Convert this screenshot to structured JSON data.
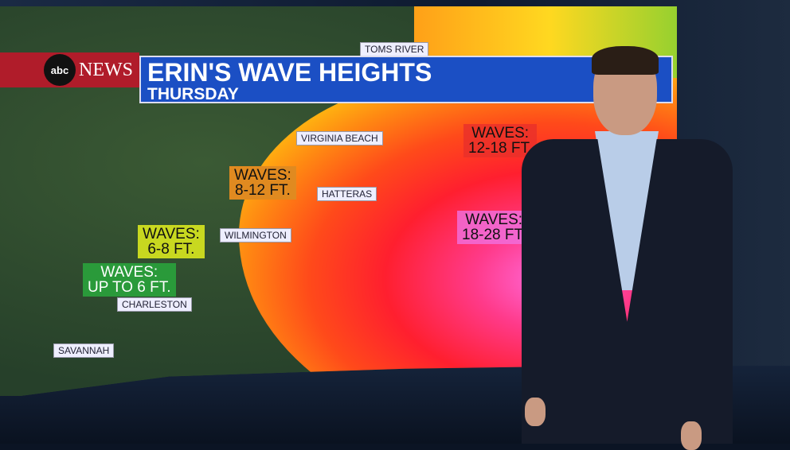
{
  "broadcast": {
    "network": "NEWS",
    "logo_text": "abc",
    "title": "ERIN'S WAVE HEIGHTS",
    "subtitle": "THURSDAY"
  },
  "cities": [
    "TOMS RIVER",
    "VIRGINIA BEACH",
    "HATTERAS",
    "WILMINGTON",
    "CHARLESTON",
    "SAVANNAH"
  ],
  "wave_labels": [
    {
      "text": "WAVES:\n12-18 FT.",
      "color": "#e8302a"
    },
    {
      "text": "WAVES:\n18-28 FT.",
      "color": "#f070e0"
    },
    {
      "text": "WAVES:\n8-12 FT.",
      "color": "#e08a20"
    },
    {
      "text": "WAVES:\n6-8 FT.",
      "color": "#c8d820"
    },
    {
      "text": "WAVES:\nUP TO 6 FT.",
      "color": "#2a9a3a"
    }
  ]
}
